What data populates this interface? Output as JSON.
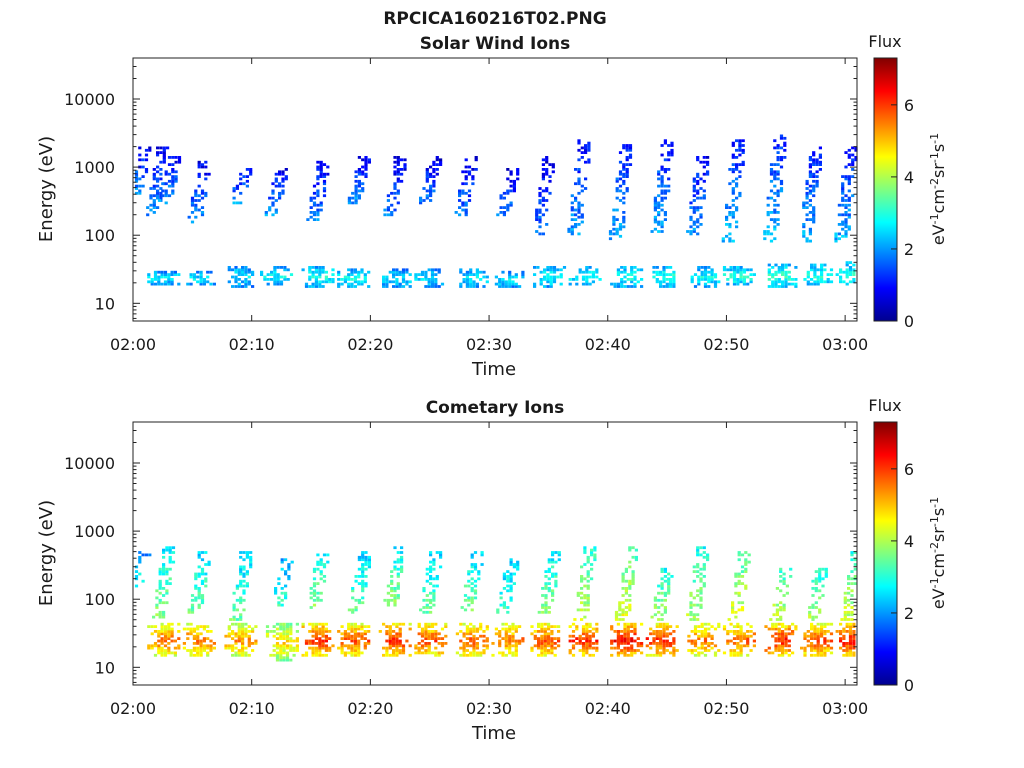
{
  "figure_title": "RPCICA160216T02.PNG",
  "chart_data": [
    {
      "type": "heatmap",
      "title": "Solar Wind Ions",
      "xlabel": "Time",
      "ylabel": "Energy (eV)",
      "x_ticks": [
        "02:00",
        "02:10",
        "02:20",
        "02:30",
        "02:40",
        "02:50",
        "03:00"
      ],
      "y_ticks": [
        "10",
        "100",
        "1000",
        "10000"
      ],
      "yscale": "log",
      "ylim": [
        5.5,
        40000
      ],
      "xlim_minutes": [
        0,
        61
      ],
      "colorbar": {
        "title": "Flux",
        "label": "eV-1cm-2sr-1s-1",
        "range": [
          0,
          7.3
        ],
        "ticks": [
          "0",
          "2",
          "4",
          "6"
        ]
      },
      "bursts": [
        {
          "t": 2.5,
          "lo": 18,
          "hi": 30,
          "lv": 3.0
        },
        {
          "t": 5.5,
          "lo": 18,
          "hi": 30,
          "lv": 3.0
        },
        {
          "t": 9,
          "lo": 17,
          "hi": 35,
          "lv": 3.0
        },
        {
          "t": 12,
          "lo": 18,
          "hi": 35,
          "lv": 3.2
        },
        {
          "t": 15.5,
          "lo": 17,
          "hi": 35,
          "lv": 3.3
        },
        {
          "t": 18.5,
          "lo": 17,
          "hi": 33,
          "lv": 3.2
        },
        {
          "t": 22,
          "lo": 17,
          "hi": 32,
          "lv": 3.0
        },
        {
          "t": 25,
          "lo": 17,
          "hi": 32,
          "lv": 3.0
        },
        {
          "t": 28.5,
          "lo": 17,
          "hi": 33,
          "lv": 3.0
        },
        {
          "t": 31.5,
          "lo": 17,
          "hi": 30,
          "lv": 3.0
        },
        {
          "t": 35,
          "lo": 17,
          "hi": 35,
          "lv": 3.2
        },
        {
          "t": 38,
          "lo": 18,
          "hi": 35,
          "lv": 3.2
        },
        {
          "t": 41.5,
          "lo": 17,
          "hi": 35,
          "lv": 3.3
        },
        {
          "t": 44.5,
          "lo": 17,
          "hi": 35,
          "lv": 3.4
        },
        {
          "t": 48,
          "lo": 17,
          "hi": 35,
          "lv": 3.2
        },
        {
          "t": 51,
          "lo": 18,
          "hi": 35,
          "lv": 3.4
        },
        {
          "t": 54.5,
          "lo": 17,
          "hi": 38,
          "lv": 3.5
        },
        {
          "t": 57.5,
          "lo": 18,
          "hi": 38,
          "lv": 3.4
        },
        {
          "t": 60.5,
          "lo": 18,
          "hi": 40,
          "lv": 3.4
        }
      ],
      "columns": [
        {
          "t": 0.5,
          "lo": 400,
          "hi": 2000,
          "lv": 2.0
        },
        {
          "t": 2,
          "lo": 200,
          "hi": 2000,
          "lv": 2.0
        },
        {
          "t": 3,
          "lo": 300,
          "hi": 1500,
          "lv": 2.0
        },
        {
          "t": 5.5,
          "lo": 150,
          "hi": 1200,
          "lv": 2.0
        },
        {
          "t": 9,
          "lo": 300,
          "hi": 1000,
          "lv": 2.0
        },
        {
          "t": 12,
          "lo": 200,
          "hi": 1000,
          "lv": 2.0
        },
        {
          "t": 15.5,
          "lo": 150,
          "hi": 1200,
          "lv": 2.0
        },
        {
          "t": 19,
          "lo": 300,
          "hi": 1500,
          "lv": 2.0
        },
        {
          "t": 22,
          "lo": 200,
          "hi": 1500,
          "lv": 1.8
        },
        {
          "t": 25,
          "lo": 300,
          "hi": 1500,
          "lv": 1.8
        },
        {
          "t": 28,
          "lo": 200,
          "hi": 1500,
          "lv": 1.8
        },
        {
          "t": 31.5,
          "lo": 200,
          "hi": 1000,
          "lv": 1.8
        },
        {
          "t": 34.5,
          "lo": 100,
          "hi": 1500,
          "lv": 1.8
        },
        {
          "t": 37.5,
          "lo": 100,
          "hi": 2500,
          "lv": 2.1
        },
        {
          "t": 41,
          "lo": 80,
          "hi": 2500,
          "lv": 2.2
        },
        {
          "t": 44.5,
          "lo": 100,
          "hi": 2500,
          "lv": 2.2
        },
        {
          "t": 47.5,
          "lo": 100,
          "hi": 1500,
          "lv": 2.0
        },
        {
          "t": 50.5,
          "lo": 80,
          "hi": 2500,
          "lv": 2.3
        },
        {
          "t": 54,
          "lo": 80,
          "hi": 3000,
          "lv": 2.3
        },
        {
          "t": 57,
          "lo": 80,
          "hi": 2000,
          "lv": 2.2
        },
        {
          "t": 60,
          "lo": 80,
          "hi": 2000,
          "lv": 2.2
        }
      ]
    },
    {
      "type": "heatmap",
      "title": "Cometary Ions",
      "xlabel": "Time",
      "ylabel": "Energy (eV)",
      "x_ticks": [
        "02:00",
        "02:10",
        "02:20",
        "02:30",
        "02:40",
        "02:50",
        "03:00"
      ],
      "y_ticks": [
        "10",
        "100",
        "1000",
        "10000"
      ],
      "yscale": "log",
      "ylim": [
        5.5,
        40000
      ],
      "xlim_minutes": [
        0,
        61
      ],
      "colorbar": {
        "title": "Flux",
        "label": "eV-1cm-2sr-1s-1",
        "range": [
          0,
          7.3
        ],
        "ticks": [
          "0",
          "2",
          "4",
          "6"
        ]
      },
      "bursts": [
        {
          "t": 2.5,
          "lo": 14,
          "hi": 45,
          "lv": 6.0
        },
        {
          "t": 5.5,
          "lo": 14,
          "hi": 45,
          "lv": 6.0
        },
        {
          "t": 9,
          "lo": 14,
          "hi": 45,
          "lv": 5.8
        },
        {
          "t": 12.5,
          "lo": 12,
          "hi": 45,
          "lv": 5.2
        },
        {
          "t": 15.5,
          "lo": 14,
          "hi": 45,
          "lv": 6.5
        },
        {
          "t": 18.5,
          "lo": 14,
          "hi": 45,
          "lv": 6.3
        },
        {
          "t": 22,
          "lo": 14,
          "hi": 45,
          "lv": 6.5
        },
        {
          "t": 25,
          "lo": 14,
          "hi": 45,
          "lv": 6.3
        },
        {
          "t": 28.5,
          "lo": 14,
          "hi": 45,
          "lv": 6.2
        },
        {
          "t": 31.5,
          "lo": 14,
          "hi": 45,
          "lv": 6.0
        },
        {
          "t": 34.5,
          "lo": 14,
          "hi": 45,
          "lv": 6.3
        },
        {
          "t": 38,
          "lo": 14,
          "hi": 45,
          "lv": 6.5
        },
        {
          "t": 41.5,
          "lo": 14,
          "hi": 45,
          "lv": 6.8
        },
        {
          "t": 44.5,
          "lo": 14,
          "hi": 45,
          "lv": 6.5
        },
        {
          "t": 48,
          "lo": 14,
          "hi": 45,
          "lv": 6.0
        },
        {
          "t": 51,
          "lo": 14,
          "hi": 45,
          "lv": 6.2
        },
        {
          "t": 54.5,
          "lo": 14,
          "hi": 45,
          "lv": 6.6
        },
        {
          "t": 57.5,
          "lo": 14,
          "hi": 45,
          "lv": 6.3
        },
        {
          "t": 60.5,
          "lo": 14,
          "hi": 45,
          "lv": 6.7
        }
      ],
      "columns": [
        {
          "t": 0.5,
          "lo": 150,
          "hi": 500,
          "lv": 3.0
        },
        {
          "t": 2.5,
          "lo": 50,
          "hi": 600,
          "lv": 3.8
        },
        {
          "t": 5.5,
          "lo": 60,
          "hi": 500,
          "lv": 3.6
        },
        {
          "t": 9,
          "lo": 50,
          "hi": 500,
          "lv": 3.5
        },
        {
          "t": 12.5,
          "lo": 80,
          "hi": 400,
          "lv": 3.2
        },
        {
          "t": 15.5,
          "lo": 70,
          "hi": 500,
          "lv": 3.8
        },
        {
          "t": 19,
          "lo": 60,
          "hi": 500,
          "lv": 3.6
        },
        {
          "t": 22,
          "lo": 80,
          "hi": 600,
          "lv": 3.8
        },
        {
          "t": 25,
          "lo": 60,
          "hi": 500,
          "lv": 3.6
        },
        {
          "t": 28.5,
          "lo": 70,
          "hi": 500,
          "lv": 3.6
        },
        {
          "t": 31.5,
          "lo": 60,
          "hi": 400,
          "lv": 3.4
        },
        {
          "t": 35,
          "lo": 60,
          "hi": 500,
          "lv": 3.8
        },
        {
          "t": 38,
          "lo": 50,
          "hi": 600,
          "lv": 4.2
        },
        {
          "t": 41.5,
          "lo": 50,
          "hi": 600,
          "lv": 4.4
        },
        {
          "t": 44.5,
          "lo": 50,
          "hi": 300,
          "lv": 4.0
        },
        {
          "t": 47.5,
          "lo": 50,
          "hi": 600,
          "lv": 4.0
        },
        {
          "t": 51,
          "lo": 50,
          "hi": 500,
          "lv": 4.4
        },
        {
          "t": 54.5,
          "lo": 50,
          "hi": 300,
          "lv": 4.2
        },
        {
          "t": 57.5,
          "lo": 50,
          "hi": 300,
          "lv": 4.0
        },
        {
          "t": 60.5,
          "lo": 50,
          "hi": 500,
          "lv": 4.2
        }
      ]
    }
  ]
}
